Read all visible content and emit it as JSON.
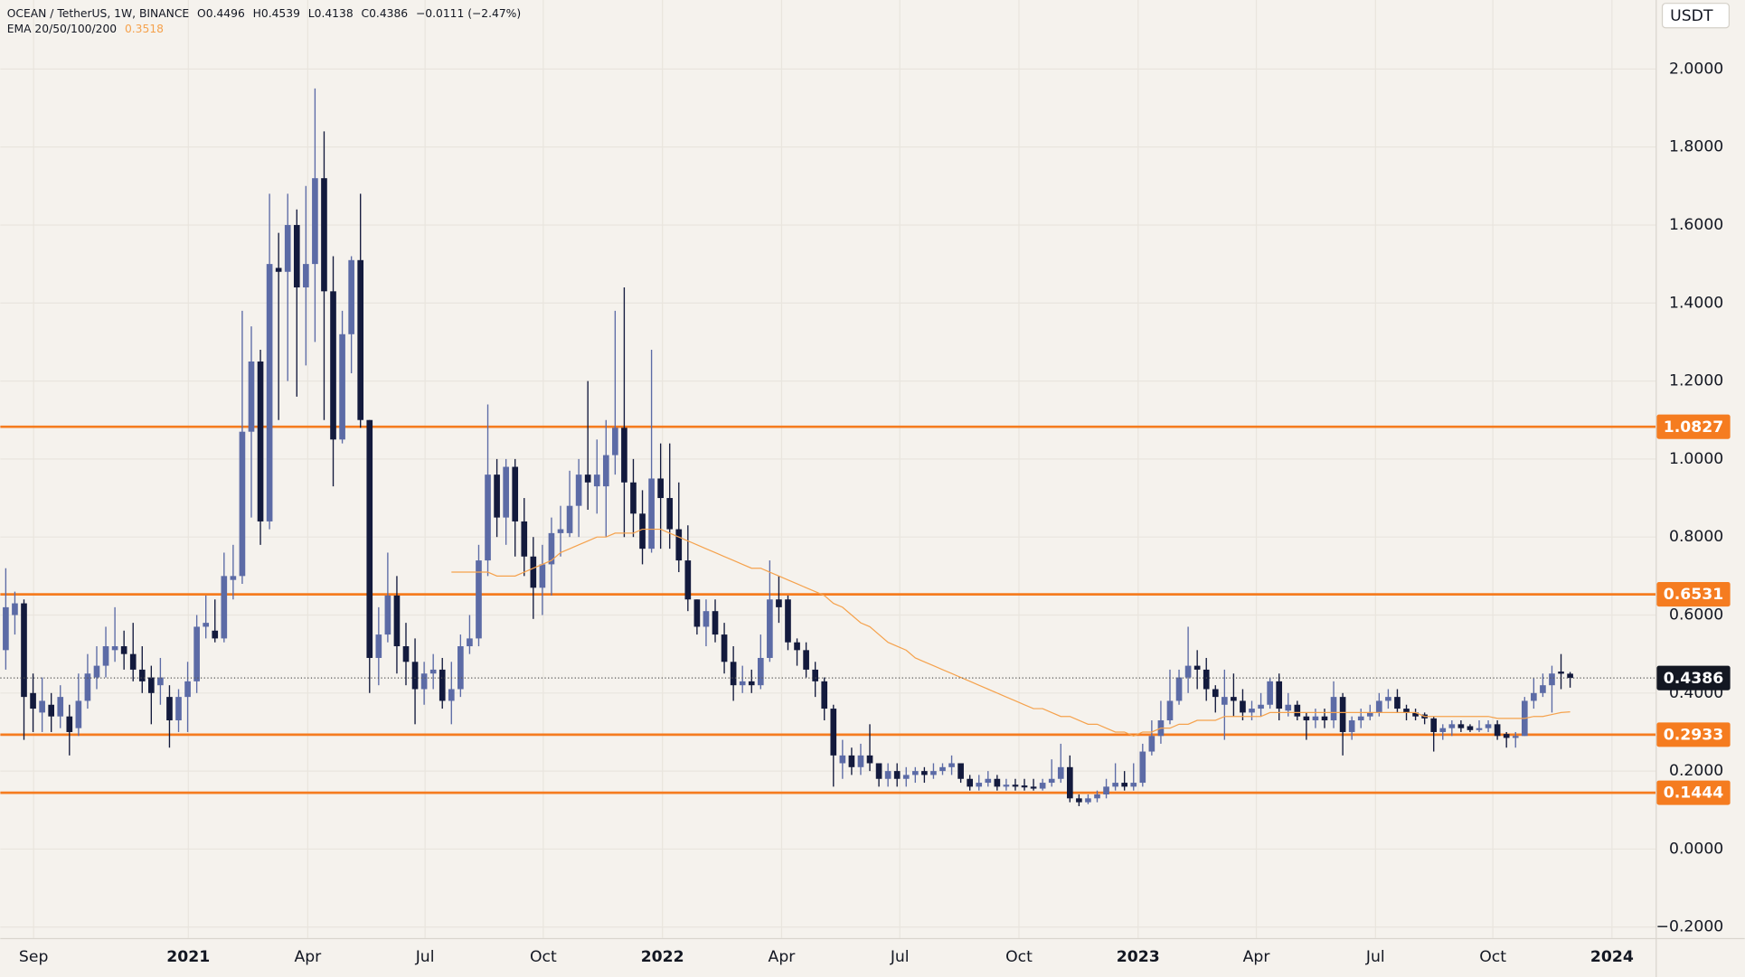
{
  "chart_data": {
    "type": "candlestick",
    "legend": {
      "symbol": "OCEAN / TetherUS, 1W, BINANCE",
      "o_label": "O",
      "h_label": "H",
      "l_label": "L",
      "c_label": "C",
      "change": "−0.0111 (−2.47%)"
    },
    "currency": "USDT",
    "up_color": "#5c6ba6",
    "down_color": "#131a3d",
    "open": [
      0.51,
      0.6,
      0.63,
      0.4,
      0.35,
      0.37,
      0.34,
      0.34,
      0.31,
      0.38,
      0.44,
      0.47,
      0.51,
      0.52,
      0.5,
      0.46,
      0.44,
      0.42,
      0.39,
      0.33,
      0.39,
      0.43,
      0.57,
      0.56,
      0.54,
      0.69,
      0.7,
      1.07,
      1.25,
      0.84,
      1.49,
      1.48,
      1.6,
      1.44,
      1.5,
      1.72,
      1.43,
      1.05,
      1.32,
      1.51,
      1.1,
      0.49,
      0.55,
      0.65,
      0.52,
      0.48,
      0.41,
      0.45,
      0.46,
      0.38,
      0.41,
      0.52,
      0.54,
      0.74,
      0.96,
      0.85,
      0.98,
      0.84,
      0.75,
      0.67,
      0.73,
      0.81,
      0.81,
      0.88,
      0.96,
      0.93,
      0.93,
      1.01,
      1.08,
      0.94,
      0.86,
      0.77,
      0.95,
      0.9,
      0.82,
      0.74,
      0.64,
      0.57,
      0.61,
      0.55,
      0.48,
      0.42,
      0.43,
      0.42,
      0.49,
      0.64,
      0.64,
      0.53,
      0.51,
      0.46,
      0.43,
      0.36,
      0.22,
      0.24,
      0.21,
      0.24,
      0.22,
      0.18,
      0.2,
      0.18,
      0.19,
      0.2,
      0.19,
      0.2,
      0.21,
      0.22,
      0.18,
      0.16,
      0.17,
      0.18,
      0.16,
      0.165,
      0.163,
      0.16,
      0.155,
      0.17,
      0.18,
      0.21,
      0.13,
      0.12,
      0.13,
      0.14,
      0.16,
      0.17,
      0.16,
      0.17,
      0.25,
      0.29,
      0.33,
      0.38,
      0.44,
      0.47,
      0.46,
      0.41,
      0.37,
      0.39,
      0.38,
      0.35,
      0.36,
      0.37,
      0.43,
      0.355,
      0.37,
      0.34,
      0.33,
      0.34,
      0.33,
      0.39,
      0.3,
      0.33,
      0.34,
      0.35,
      0.38,
      0.39,
      0.36,
      0.35,
      0.345,
      0.335,
      0.3,
      0.31,
      0.32,
      0.315,
      0.305,
      0.31,
      0.32,
      0.295,
      0.285,
      0.29,
      0.38,
      0.4,
      0.42,
      0.455,
      0.4496
    ],
    "high": [
      0.72,
      0.66,
      0.64,
      0.45,
      0.44,
      0.4,
      0.42,
      0.37,
      0.45,
      0.5,
      0.52,
      0.57,
      0.62,
      0.56,
      0.58,
      0.52,
      0.47,
      0.49,
      0.42,
      0.41,
      0.48,
      0.6,
      0.65,
      0.64,
      0.76,
      0.78,
      1.38,
      1.34,
      1.28,
      1.68,
      1.58,
      1.68,
      1.64,
      1.7,
      1.95,
      1.84,
      1.52,
      1.38,
      1.52,
      1.68,
      1.1,
      0.62,
      0.76,
      0.7,
      0.58,
      0.54,
      0.48,
      0.5,
      0.49,
      0.48,
      0.55,
      0.6,
      0.78,
      1.14,
      1.0,
      1.0,
      1.0,
      0.9,
      0.8,
      0.78,
      0.85,
      0.88,
      0.97,
      1.0,
      1.2,
      1.05,
      1.1,
      1.38,
      1.44,
      1.0,
      0.92,
      1.28,
      1.04,
      1.04,
      0.94,
      0.83,
      0.64,
      0.64,
      0.64,
      0.58,
      0.52,
      0.47,
      0.46,
      0.55,
      0.74,
      0.7,
      0.65,
      0.54,
      0.53,
      0.48,
      0.44,
      0.37,
      0.28,
      0.26,
      0.27,
      0.32,
      0.22,
      0.22,
      0.22,
      0.21,
      0.21,
      0.21,
      0.22,
      0.22,
      0.24,
      0.22,
      0.19,
      0.19,
      0.2,
      0.19,
      0.18,
      0.18,
      0.18,
      0.18,
      0.18,
      0.23,
      0.27,
      0.24,
      0.14,
      0.14,
      0.15,
      0.18,
      0.22,
      0.2,
      0.22,
      0.27,
      0.33,
      0.38,
      0.46,
      0.46,
      0.57,
      0.51,
      0.49,
      0.42,
      0.46,
      0.45,
      0.41,
      0.38,
      0.4,
      0.44,
      0.45,
      0.4,
      0.38,
      0.35,
      0.36,
      0.36,
      0.43,
      0.4,
      0.34,
      0.36,
      0.37,
      0.4,
      0.41,
      0.41,
      0.37,
      0.36,
      0.35,
      0.34,
      0.32,
      0.33,
      0.33,
      0.32,
      0.33,
      0.33,
      0.33,
      0.3,
      0.3,
      0.39,
      0.44,
      0.45,
      0.47,
      0.5,
      0.4539
    ],
    "low": [
      0.46,
      0.55,
      0.28,
      0.3,
      0.3,
      0.3,
      0.31,
      0.24,
      0.29,
      0.36,
      0.41,
      0.44,
      0.48,
      0.46,
      0.43,
      0.4,
      0.32,
      0.37,
      0.26,
      0.3,
      0.3,
      0.4,
      0.54,
      0.53,
      0.53,
      0.64,
      0.68,
      0.85,
      0.78,
      0.82,
      1.1,
      1.2,
      1.16,
      1.24,
      1.3,
      1.1,
      0.93,
      1.04,
      1.22,
      1.08,
      0.4,
      0.42,
      0.53,
      0.45,
      0.42,
      0.32,
      0.37,
      0.41,
      0.36,
      0.32,
      0.39,
      0.5,
      0.52,
      0.7,
      0.8,
      0.78,
      0.75,
      0.7,
      0.59,
      0.6,
      0.65,
      0.75,
      0.8,
      0.8,
      0.87,
      0.86,
      0.8,
      0.96,
      0.8,
      0.8,
      0.73,
      0.76,
      0.77,
      0.77,
      0.71,
      0.61,
      0.55,
      0.52,
      0.53,
      0.45,
      0.38,
      0.4,
      0.4,
      0.41,
      0.48,
      0.58,
      0.51,
      0.47,
      0.44,
      0.39,
      0.33,
      0.16,
      0.18,
      0.19,
      0.19,
      0.2,
      0.16,
      0.16,
      0.16,
      0.16,
      0.17,
      0.17,
      0.18,
      0.19,
      0.19,
      0.17,
      0.15,
      0.15,
      0.16,
      0.15,
      0.15,
      0.15,
      0.15,
      0.15,
      0.15,
      0.16,
      0.17,
      0.12,
      0.11,
      0.115,
      0.12,
      0.13,
      0.15,
      0.15,
      0.15,
      0.16,
      0.24,
      0.27,
      0.32,
      0.37,
      0.4,
      0.41,
      0.38,
      0.35,
      0.28,
      0.34,
      0.33,
      0.33,
      0.34,
      0.36,
      0.33,
      0.34,
      0.33,
      0.28,
      0.31,
      0.31,
      0.31,
      0.24,
      0.28,
      0.31,
      0.33,
      0.34,
      0.36,
      0.35,
      0.33,
      0.33,
      0.32,
      0.25,
      0.28,
      0.29,
      0.3,
      0.3,
      0.3,
      0.3,
      0.28,
      0.26,
      0.26,
      0.29,
      0.36,
      0.39,
      0.35,
      0.41,
      0.4138
    ],
    "close": [
      0.62,
      0.63,
      0.39,
      0.36,
      0.38,
      0.34,
      0.39,
      0.3,
      0.38,
      0.45,
      0.47,
      0.52,
      0.52,
      0.5,
      0.46,
      0.43,
      0.4,
      0.44,
      0.33,
      0.39,
      0.43,
      0.57,
      0.58,
      0.54,
      0.7,
      0.7,
      1.07,
      1.25,
      0.84,
      1.5,
      1.48,
      1.6,
      1.44,
      1.5,
      1.72,
      1.43,
      1.05,
      1.32,
      1.51,
      1.1,
      0.49,
      0.55,
      0.65,
      0.52,
      0.48,
      0.41,
      0.45,
      0.46,
      0.38,
      0.41,
      0.52,
      0.54,
      0.74,
      0.96,
      0.85,
      0.98,
      0.84,
      0.75,
      0.67,
      0.73,
      0.81,
      0.82,
      0.88,
      0.96,
      0.94,
      0.96,
      1.01,
      1.08,
      0.94,
      0.86,
      0.77,
      0.95,
      0.9,
      0.82,
      0.74,
      0.64,
      0.57,
      0.61,
      0.55,
      0.48,
      0.42,
      0.43,
      0.42,
      0.49,
      0.64,
      0.62,
      0.53,
      0.51,
      0.46,
      0.43,
      0.36,
      0.24,
      0.24,
      0.21,
      0.24,
      0.22,
      0.18,
      0.2,
      0.18,
      0.19,
      0.2,
      0.19,
      0.2,
      0.21,
      0.22,
      0.18,
      0.16,
      0.17,
      0.18,
      0.16,
      0.165,
      0.16,
      0.158,
      0.155,
      0.17,
      0.18,
      0.21,
      0.13,
      0.12,
      0.13,
      0.14,
      0.16,
      0.17,
      0.16,
      0.17,
      0.25,
      0.29,
      0.33,
      0.38,
      0.44,
      0.47,
      0.46,
      0.41,
      0.39,
      0.39,
      0.38,
      0.35,
      0.36,
      0.37,
      0.43,
      0.36,
      0.37,
      0.34,
      0.33,
      0.34,
      0.33,
      0.39,
      0.3,
      0.33,
      0.34,
      0.35,
      0.38,
      0.39,
      0.36,
      0.35,
      0.34,
      0.335,
      0.3,
      0.31,
      0.32,
      0.31,
      0.305,
      0.31,
      0.32,
      0.29,
      0.285,
      0.29,
      0.38,
      0.4,
      0.42,
      0.45,
      0.4496,
      0.4386
    ],
    "ema": {
      "name": "EMA 20/50/100/200",
      "color": "#f5a24d",
      "values": [
        null,
        null,
        null,
        null,
        null,
        null,
        null,
        null,
        null,
        null,
        null,
        null,
        null,
        null,
        null,
        null,
        null,
        null,
        null,
        null,
        null,
        null,
        null,
        null,
        null,
        null,
        null,
        null,
        null,
        null,
        null,
        null,
        null,
        null,
        null,
        null,
        null,
        null,
        null,
        null,
        null,
        null,
        null,
        null,
        null,
        null,
        null,
        null,
        null,
        0.71,
        0.71,
        0.71,
        0.71,
        0.71,
        0.7,
        0.7,
        0.7,
        0.71,
        0.72,
        0.73,
        0.74,
        0.76,
        0.77,
        0.78,
        0.79,
        0.8,
        0.8,
        0.81,
        0.81,
        0.81,
        0.82,
        0.82,
        0.82,
        0.81,
        0.8,
        0.79,
        0.78,
        0.77,
        0.76,
        0.75,
        0.74,
        0.73,
        0.72,
        0.72,
        0.71,
        0.7,
        0.69,
        0.68,
        0.67,
        0.66,
        0.65,
        0.63,
        0.62,
        0.6,
        0.58,
        0.57,
        0.55,
        0.53,
        0.52,
        0.51,
        0.49,
        0.48,
        0.47,
        0.46,
        0.45,
        0.44,
        0.43,
        0.42,
        0.41,
        0.4,
        0.39,
        0.38,
        0.37,
        0.36,
        0.36,
        0.35,
        0.34,
        0.34,
        0.33,
        0.32,
        0.32,
        0.31,
        0.3,
        0.3,
        0.29,
        0.3,
        0.3,
        0.31,
        0.31,
        0.32,
        0.32,
        0.33,
        0.33,
        0.33,
        0.34,
        0.34,
        0.34,
        0.34,
        0.34,
        0.35,
        0.35,
        0.35,
        0.35,
        0.35,
        0.35,
        0.35,
        0.35,
        0.35,
        0.35,
        0.35,
        0.35,
        0.35,
        0.35,
        0.35,
        0.35,
        0.35,
        0.34,
        0.34,
        0.34,
        0.34,
        0.34,
        0.34,
        0.34,
        0.34,
        0.335,
        0.335,
        0.335,
        0.335,
        0.34,
        0.34,
        0.345,
        0.35,
        0.3518
      ]
    },
    "levels": {
      "color": "#f57c20",
      "values": [
        1.0827,
        0.6531,
        0.2933,
        0.1444
      ]
    },
    "xlim": [
      -0.6,
      181.4
    ],
    "xticks": [
      {
        "value": 3.06,
        "label": "Sep"
      },
      {
        "value": 20.07,
        "label": "2021"
      },
      {
        "value": 33.2,
        "label": "Apr"
      },
      {
        "value": 46.1,
        "label": "Jul"
      },
      {
        "value": 59.1,
        "label": "Oct"
      },
      {
        "value": 72.2,
        "label": "2022"
      },
      {
        "value": 85.3,
        "label": "Apr"
      },
      {
        "value": 98.3,
        "label": "Jul"
      },
      {
        "value": 111.4,
        "label": "Oct"
      },
      {
        "value": 124.5,
        "label": "2023"
      },
      {
        "value": 137.5,
        "label": "Apr"
      },
      {
        "value": 150.6,
        "label": "Jul"
      },
      {
        "value": 163.5,
        "label": "Oct"
      },
      {
        "value": 176.6,
        "label": "2024"
      }
    ],
    "ylim": [
      -0.2282,
      2.1769
    ],
    "yticks": [
      {
        "value": 2,
        "label": "2.0000"
      },
      {
        "value": 1.8,
        "label": "1.8000"
      },
      {
        "value": 1.6,
        "label": "1.6000"
      },
      {
        "value": 1.4,
        "label": "1.4000"
      },
      {
        "value": 1.2,
        "label": "1.2000"
      },
      {
        "value": 1,
        "label": "1.0000"
      },
      {
        "value": 0.8,
        "label": "0.8000"
      },
      {
        "value": 0.6,
        "label": "0.6000"
      },
      {
        "value": 0.4,
        "label": "0.4000"
      },
      {
        "value": 0.2,
        "label": "0.2000"
      },
      {
        "value": 0,
        "label": "0.0000"
      },
      {
        "value": -0.2,
        "label": "−0.2000"
      }
    ],
    "grid": true
  }
}
